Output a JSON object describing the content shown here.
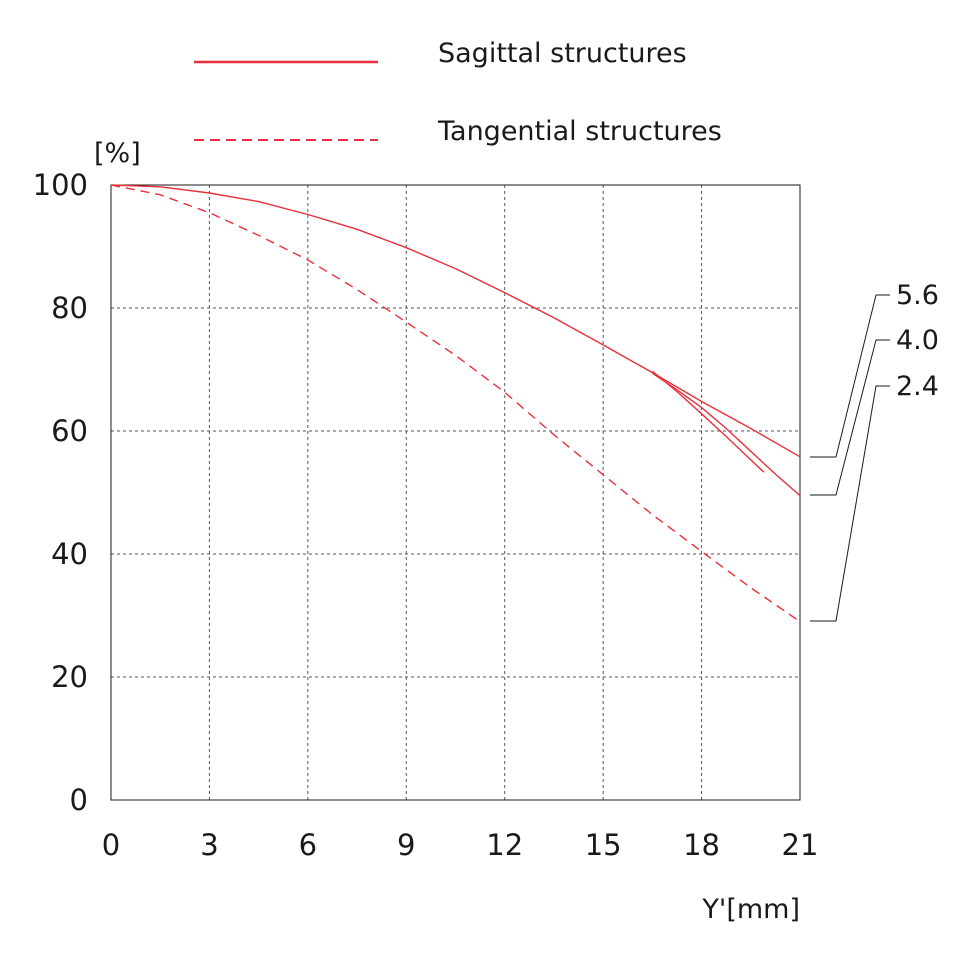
{
  "chart_data": {
    "type": "line",
    "legend": {
      "placement": "top",
      "entries": [
        {
          "label": "Sagittal structures",
          "style": "solid"
        },
        {
          "label": "Tangential structures",
          "style": "dashed"
        }
      ]
    },
    "ylabel": "[%]",
    "xlabel": "Y'[mm]",
    "xlim": [
      0,
      21
    ],
    "ylim": [
      0,
      100
    ],
    "x_ticks": [
      0,
      3,
      6,
      9,
      12,
      15,
      18,
      21
    ],
    "y_ticks": [
      0,
      20,
      40,
      60,
      80,
      100
    ],
    "x_tick_labels": [
      "0",
      "3",
      "6",
      "9",
      "12",
      "15",
      "18",
      "21"
    ],
    "y_tick_labels": [
      "0",
      "20",
      "40",
      "60",
      "80",
      "100"
    ],
    "grid": true,
    "aperture_labels": [
      "5.6",
      "4.0",
      "2.4"
    ],
    "line_color": "#e8303c",
    "series": [
      {
        "aperture": "5.6",
        "structure": "sagittal",
        "style": "solid",
        "x": [
          0,
          1.5,
          3,
          4.5,
          6,
          7.5,
          9,
          10.5,
          12,
          13.5,
          15,
          16.5,
          18,
          19.5,
          21
        ],
        "y": [
          100,
          99.7,
          98.7,
          97.3,
          95.2,
          92.8,
          89.8,
          86.4,
          82.5,
          78.4,
          74,
          69.5,
          64.8,
          60.4,
          55.8
        ]
      },
      {
        "aperture": "4.0",
        "structure": "sagittal",
        "style": "solid",
        "x": [
          16.5,
          17.25,
          18,
          18.75,
          19.5,
          20.25,
          21
        ],
        "y": [
          69.4,
          66.7,
          63.8,
          60.4,
          56.7,
          53,
          49.5
        ]
      },
      {
        "aperture": "2.4",
        "structure": "sagittal",
        "style": "solid",
        "x": [
          16.5,
          17.25,
          18,
          18.75,
          19.5,
          19.9
        ],
        "y": [
          69.7,
          66.4,
          62.8,
          59.1,
          55.3,
          53.3
        ]
      },
      {
        "aperture": "5.6",
        "structure": "tangential",
        "style": "dashed",
        "x": [
          0,
          1.5,
          3,
          4.5,
          6,
          7.5,
          9,
          10.5,
          12,
          13.5,
          15,
          16.5,
          18,
          19.5,
          21
        ],
        "y": [
          100,
          98.4,
          95.5,
          91.8,
          87.8,
          83,
          77.7,
          72.3,
          66.3,
          59.4,
          52.9,
          46.4,
          40.4,
          34.5,
          29
        ]
      }
    ]
  }
}
